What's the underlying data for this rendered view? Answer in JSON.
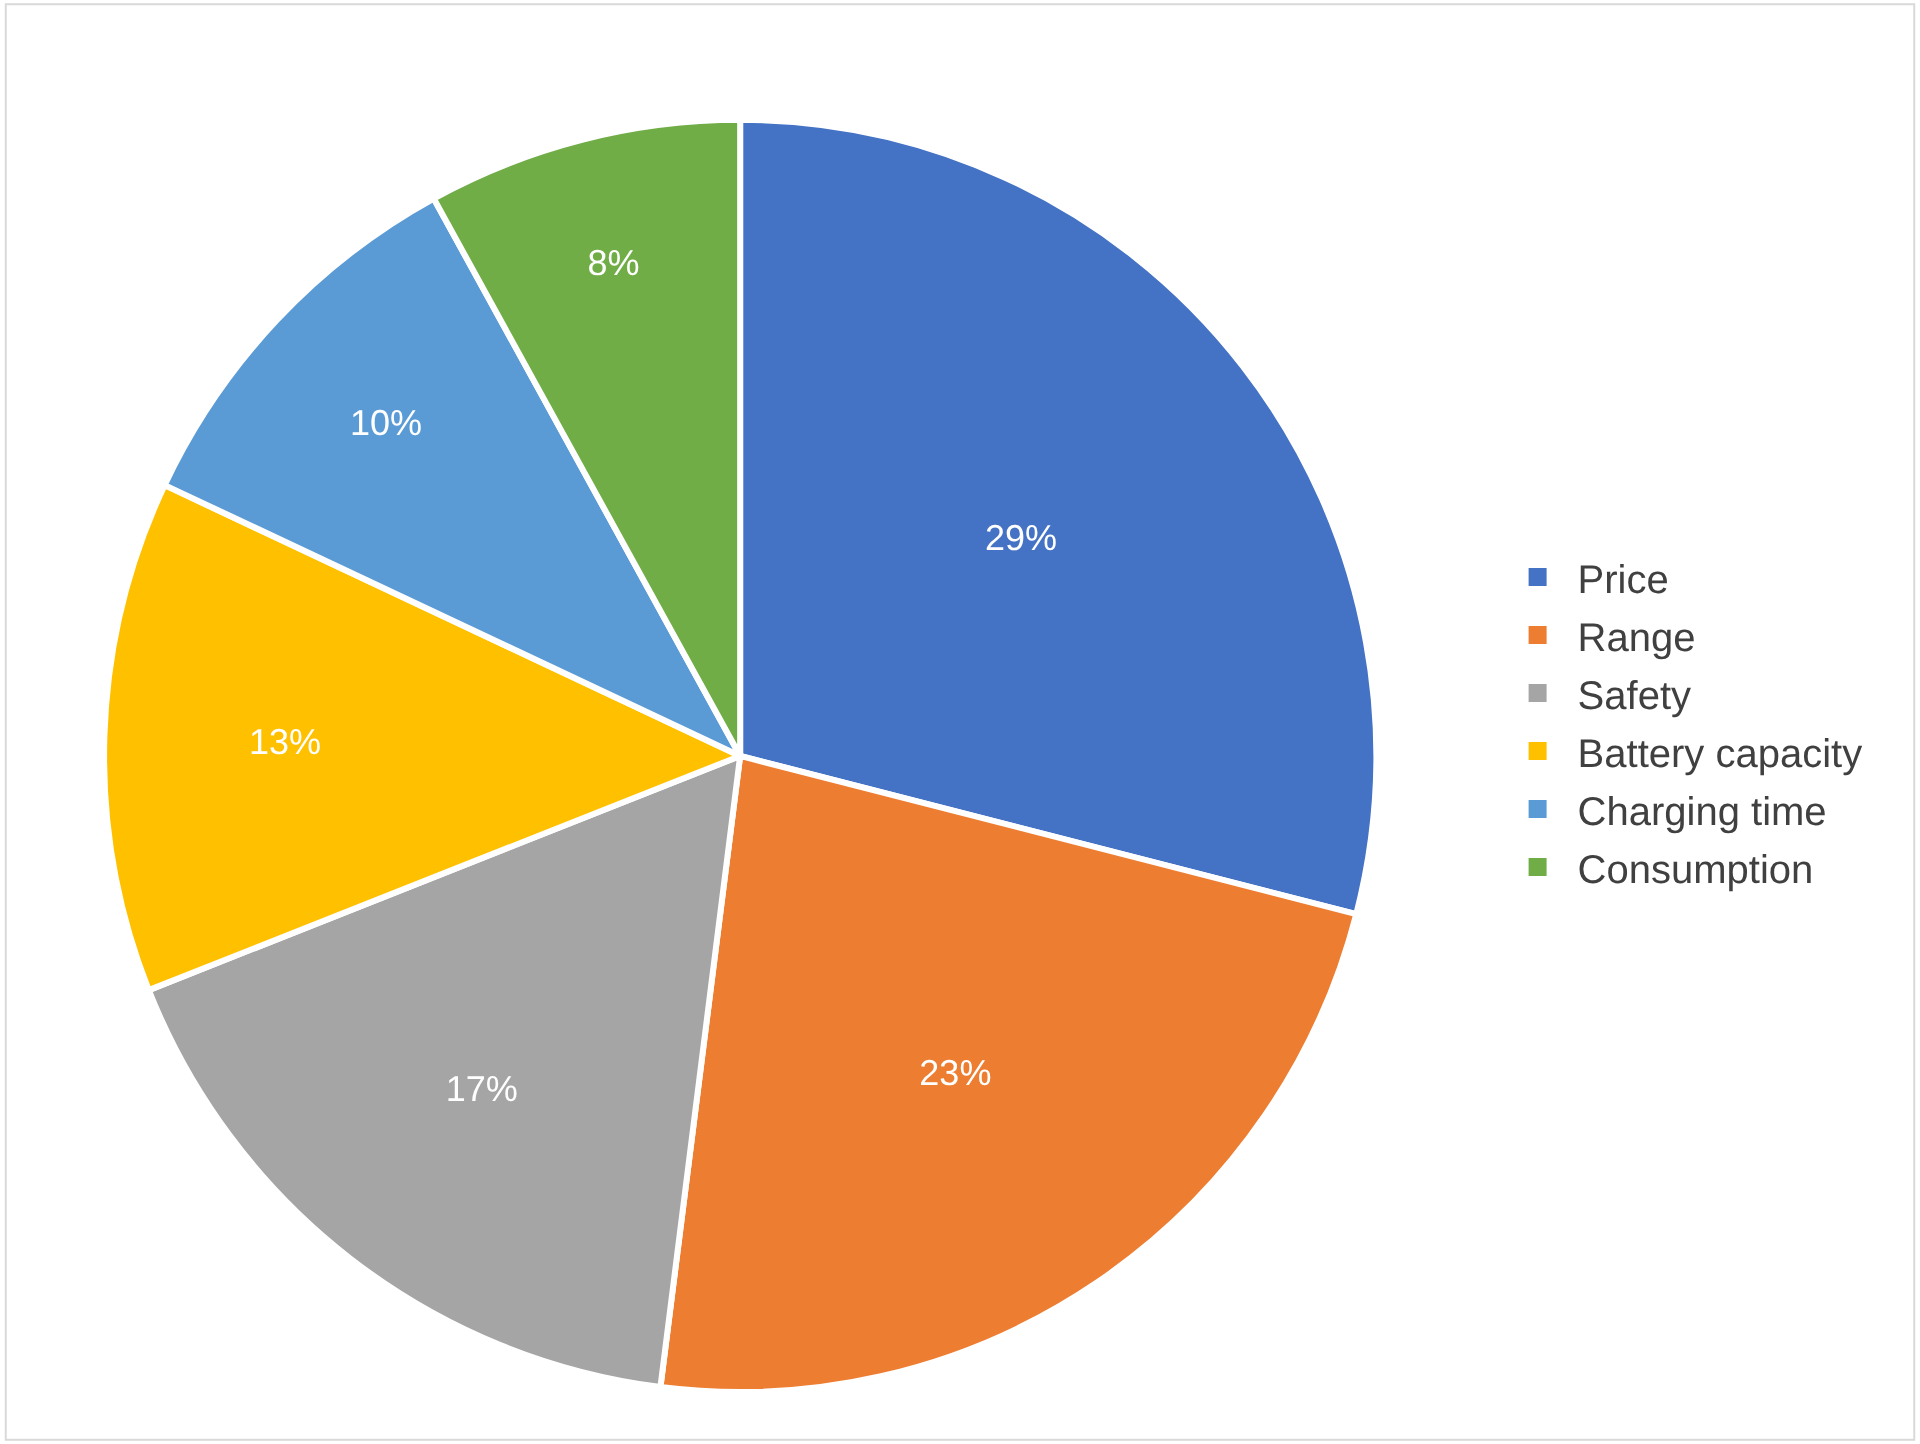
{
  "chart_data": {
    "type": "pie",
    "categories": [
      "Price",
      "Range",
      "Safety",
      "Battery capacity",
      "Charging time",
      "Consumption"
    ],
    "values": [
      29,
      23,
      17,
      13,
      10,
      8
    ],
    "value_labels": [
      "29%",
      "23%",
      "17%",
      "13%",
      "10%",
      "8%"
    ],
    "colors": [
      "#4472c4",
      "#ed7d31",
      "#a5a5a5",
      "#ffc000",
      "#5b9bd5",
      "#70ad47"
    ],
    "legend": "right"
  }
}
